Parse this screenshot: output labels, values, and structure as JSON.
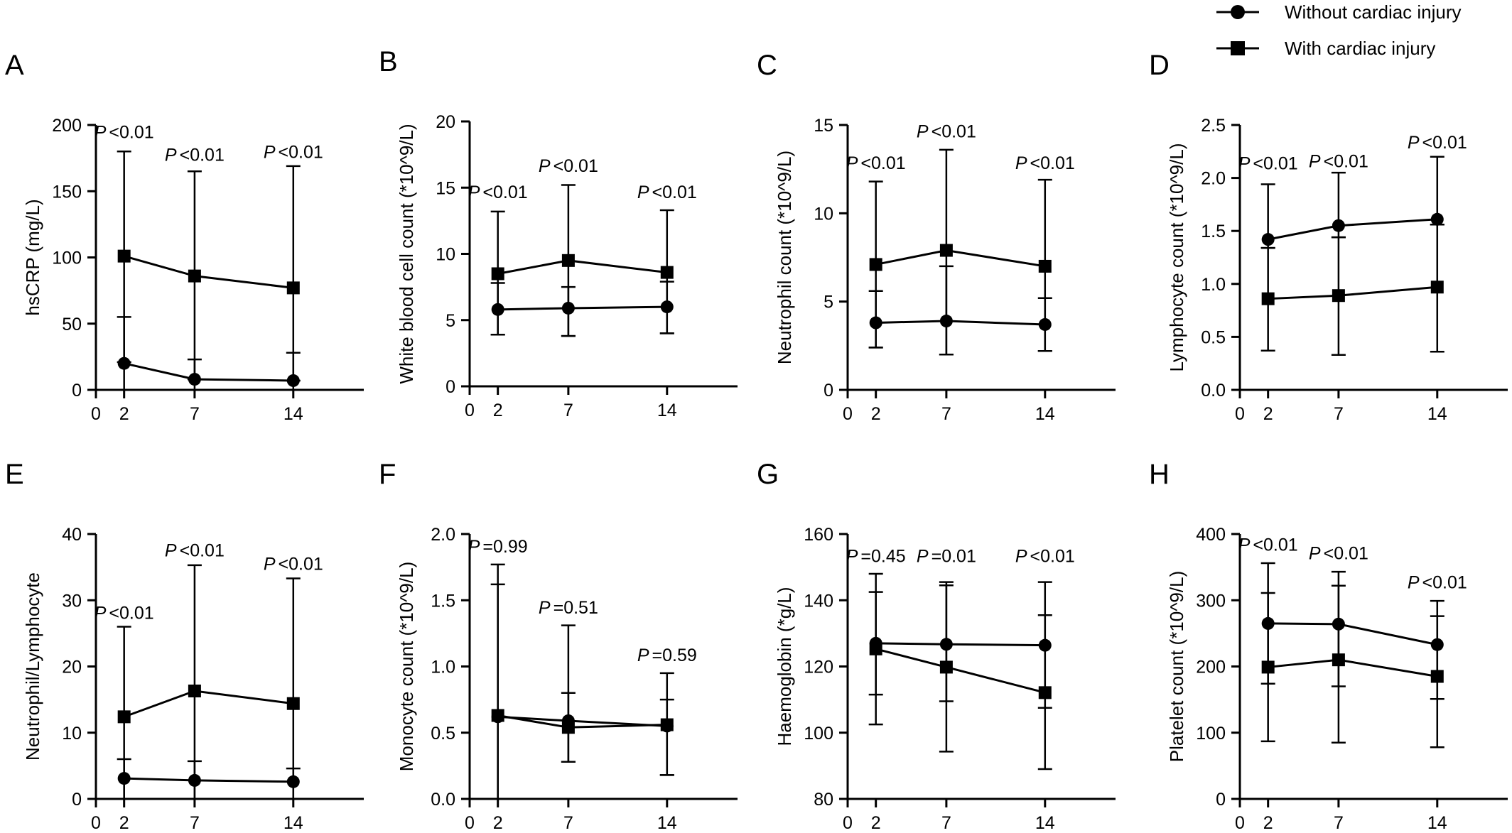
{
  "legend": [
    {
      "label": "Without cardiac injury",
      "marker": "circle"
    },
    {
      "label": "With cardiac injury",
      "marker": "square"
    }
  ],
  "colors": {
    "ink": "#000000",
    "background": "#ffffff"
  },
  "chart_data": [
    {
      "panel": "A",
      "type": "line",
      "ylabel": "hsCRP (mg/L)",
      "x": [
        2,
        7,
        14
      ],
      "xticks": [
        "0",
        "2",
        "7",
        "14"
      ],
      "xlim": [
        0,
        19
      ],
      "ylim": [
        0,
        200
      ],
      "yticks": [
        "0",
        "50",
        "100",
        "150",
        "200"
      ],
      "grid": false,
      "series": [
        {
          "name": "Without cardiac injury",
          "marker": "circle",
          "values": [
            20,
            8,
            7
          ],
          "err_low": [
            0,
            0,
            0
          ],
          "err_high": [
            55,
            23,
            28
          ]
        },
        {
          "name": "With cardiac injury",
          "marker": "square",
          "values": [
            101,
            86,
            77
          ],
          "err_low": [
            21,
            8,
            7
          ],
          "err_high": [
            180,
            165,
            169
          ]
        }
      ],
      "p_values": [
        {
          "x": 2,
          "y": 190,
          "p": "P",
          "text": "<0.01"
        },
        {
          "x": 7,
          "y": 173,
          "p": "P",
          "text": "<0.01"
        },
        {
          "x": 14,
          "y": 175,
          "p": "P",
          "text": "<0.01"
        }
      ]
    },
    {
      "panel": "B",
      "type": "line",
      "ylabel": "White blood cell count (*10^9/L)",
      "x": [
        2,
        7,
        14
      ],
      "xticks": [
        "0",
        "2",
        "7",
        "14"
      ],
      "xlim": [
        0,
        19
      ],
      "ylim": [
        0,
        20
      ],
      "yticks": [
        "0",
        "5",
        "10",
        "15",
        "20"
      ],
      "grid": false,
      "series": [
        {
          "name": "Without cardiac injury",
          "marker": "circle",
          "values": [
            5.8,
            5.9,
            6.0
          ],
          "err_low": [
            3.9,
            3.8,
            4.0
          ],
          "err_high": [
            7.8,
            7.5,
            7.9
          ]
        },
        {
          "name": "With cardiac injury",
          "marker": "square",
          "values": [
            8.5,
            9.5,
            8.6
          ],
          "err_low": [
            3.9,
            3.8,
            4.0
          ],
          "err_high": [
            13.2,
            15.2,
            13.3
          ]
        }
      ],
      "p_values": [
        {
          "x": 2,
          "y": 14.2,
          "p": "P",
          "text": "<0.01"
        },
        {
          "x": 7,
          "y": 16.2,
          "p": "P",
          "text": "<0.01"
        },
        {
          "x": 14,
          "y": 14.2,
          "p": "P",
          "text": "<0.01"
        }
      ]
    },
    {
      "panel": "C",
      "type": "line",
      "ylabel": "Neutrophil count (*10^9/L)",
      "x": [
        2,
        7,
        14
      ],
      "xticks": [
        "0",
        "2",
        "7",
        "14"
      ],
      "xlim": [
        0,
        19
      ],
      "ylim": [
        0,
        15
      ],
      "yticks": [
        "0",
        "5",
        "10",
        "15"
      ],
      "grid": false,
      "series": [
        {
          "name": "Without cardiac injury",
          "marker": "circle",
          "values": [
            3.8,
            3.9,
            3.7
          ],
          "err_low": [
            2.4,
            2.0,
            2.2
          ],
          "err_high": [
            5.6,
            7.0,
            5.2
          ]
        },
        {
          "name": "With cardiac injury",
          "marker": "square",
          "values": [
            7.1,
            7.9,
            7.0
          ],
          "err_low": [
            2.4,
            2.0,
            2.2
          ],
          "err_high": [
            11.8,
            13.6,
            11.9
          ]
        }
      ],
      "p_values": [
        {
          "x": 2,
          "y": 12.5,
          "p": "P",
          "text": "<0.01"
        },
        {
          "x": 7,
          "y": 14.3,
          "p": "P",
          "text": "<0.01"
        },
        {
          "x": 14,
          "y": 12.5,
          "p": "P",
          "text": "<0.01"
        }
      ]
    },
    {
      "panel": "D",
      "type": "line",
      "ylabel": "Lymphocyte count (*10^9/L)",
      "x": [
        2,
        7,
        14
      ],
      "xticks": [
        "0",
        "2",
        "7",
        "14"
      ],
      "xlim": [
        0,
        19
      ],
      "ylim": [
        0,
        2.5
      ],
      "yticks": [
        "0.0",
        "0.5",
        "1.0",
        "1.5",
        "2.0",
        "2.5"
      ],
      "grid": false,
      "series": [
        {
          "name": "Without cardiac injury",
          "marker": "circle",
          "values": [
            1.42,
            1.55,
            1.61
          ],
          "err_low": [
            1.34,
            1.44,
            1.56
          ],
          "err_high": [
            1.94,
            2.05,
            2.2
          ]
        },
        {
          "name": "With cardiac injury",
          "marker": "square",
          "values": [
            0.86,
            0.89,
            0.97
          ],
          "err_low": [
            0.37,
            0.33,
            0.36
          ],
          "err_high": [
            1.34,
            1.44,
            1.56
          ]
        }
      ],
      "p_values": [
        {
          "x": 2,
          "y": 2.08,
          "p": "P",
          "text": "<0.01"
        },
        {
          "x": 7,
          "y": 2.1,
          "p": "P",
          "text": "<0.01"
        },
        {
          "x": 14,
          "y": 2.28,
          "p": "P",
          "text": "<0.01"
        }
      ]
    },
    {
      "panel": "E",
      "type": "line",
      "ylabel": "Neutrophil/Lymphocyte",
      "x": [
        2,
        7,
        14
      ],
      "xticks": [
        "0",
        "2",
        "7",
        "14"
      ],
      "xlim": [
        0,
        19
      ],
      "ylim": [
        0,
        40
      ],
      "yticks": [
        "0",
        "10",
        "20",
        "30",
        "40"
      ],
      "grid": false,
      "series": [
        {
          "name": "Without cardiac injury",
          "marker": "circle",
          "values": [
            3.1,
            2.8,
            2.6
          ],
          "err_low": [
            0,
            0,
            0
          ],
          "err_high": [
            6.0,
            5.7,
            4.6
          ]
        },
        {
          "name": "With cardiac injury",
          "marker": "square",
          "values": [
            12.4,
            16.3,
            14.4
          ],
          "err_low": [
            0,
            0,
            0
          ],
          "err_high": [
            26.0,
            35.3,
            33.3
          ]
        }
      ],
      "p_values": [
        {
          "x": 2,
          "y": 27.2,
          "p": "P",
          "text": "<0.01"
        },
        {
          "x": 7,
          "y": 36.6,
          "p": "P",
          "text": "<0.01"
        },
        {
          "x": 14,
          "y": 34.6,
          "p": "P",
          "text": "<0.01"
        }
      ]
    },
    {
      "panel": "F",
      "type": "line",
      "ylabel": "Monocyte count (*10^9/L)",
      "x": [
        2,
        7,
        14
      ],
      "xticks": [
        "0",
        "2",
        "7",
        "14"
      ],
      "xlim": [
        0,
        19
      ],
      "ylim": [
        0,
        2.0
      ],
      "yticks": [
        "0.0",
        "0.5",
        "1.0",
        "1.5",
        "2.0"
      ],
      "grid": false,
      "series": [
        {
          "name": "Without cardiac injury",
          "marker": "circle",
          "values": [
            0.62,
            0.59,
            0.55
          ],
          "err_low": [
            0,
            0.28,
            0.18
          ],
          "err_high": [
            1.62,
            0.8,
            0.75
          ]
        },
        {
          "name": "With cardiac injury",
          "marker": "square",
          "values": [
            0.63,
            0.54,
            0.56
          ],
          "err_low": [
            0,
            0.28,
            0.18
          ],
          "err_high": [
            1.77,
            1.31,
            0.95
          ]
        }
      ],
      "p_values": [
        {
          "x": 2,
          "y": 1.86,
          "p": "P",
          "text": "=0.99"
        },
        {
          "x": 7,
          "y": 1.4,
          "p": "P",
          "text": "=0.51"
        },
        {
          "x": 14,
          "y": 1.04,
          "p": "P",
          "text": "=0.59"
        }
      ]
    },
    {
      "panel": "G",
      "type": "line",
      "ylabel": "Haemoglobin (*g/L)",
      "x": [
        2,
        7,
        14
      ],
      "xticks": [
        "0",
        "2",
        "7",
        "14"
      ],
      "xlim": [
        0,
        19
      ],
      "ylim": [
        80,
        160
      ],
      "yticks": [
        "80",
        "100",
        "120",
        "140",
        "160"
      ],
      "grid": false,
      "series": [
        {
          "name": "Without cardiac injury",
          "marker": "circle",
          "values": [
            127,
            126.7,
            126.4
          ],
          "err_low": [
            111.5,
            109.5,
            107.5
          ],
          "err_high": [
            142.5,
            144.5,
            145.5
          ]
        },
        {
          "name": "With cardiac injury",
          "marker": "square",
          "values": [
            125.3,
            119.8,
            112.1
          ],
          "err_low": [
            102.5,
            94.3,
            89.0
          ],
          "err_high": [
            148,
            145.5,
            135.5
          ]
        }
      ],
      "p_values": [
        {
          "x": 2,
          "y": 151.5,
          "p": "P",
          "text": "=0.45"
        },
        {
          "x": 7,
          "y": 151.5,
          "p": "P",
          "text": "=0.01"
        },
        {
          "x": 14,
          "y": 151.5,
          "p": "P",
          "text": "<0.01"
        }
      ]
    },
    {
      "panel": "H",
      "type": "line",
      "ylabel": "Platelet count (*10^9/L)",
      "x": [
        2,
        7,
        14
      ],
      "xticks": [
        "0",
        "2",
        "7",
        "14"
      ],
      "xlim": [
        0,
        19
      ],
      "ylim": [
        0,
        400
      ],
      "yticks": [
        "0",
        "100",
        "200",
        "300",
        "400"
      ],
      "grid": false,
      "series": [
        {
          "name": "Without cardiac injury",
          "marker": "circle",
          "values": [
            265,
            264,
            233
          ],
          "err_low": [
            174,
            170,
            151
          ],
          "err_high": [
            356,
            343,
            299
          ]
        },
        {
          "name": "With cardiac injury",
          "marker": "square",
          "values": [
            199,
            210,
            185
          ],
          "err_low": [
            87,
            85,
            78
          ],
          "err_high": [
            311,
            322,
            276
          ]
        }
      ],
      "p_values": [
        {
          "x": 2,
          "y": 375,
          "p": "P",
          "text": "<0.01"
        },
        {
          "x": 7,
          "y": 362,
          "p": "P",
          "text": "<0.01"
        },
        {
          "x": 14,
          "y": 318,
          "p": "P",
          "text": "<0.01"
        }
      ]
    }
  ]
}
